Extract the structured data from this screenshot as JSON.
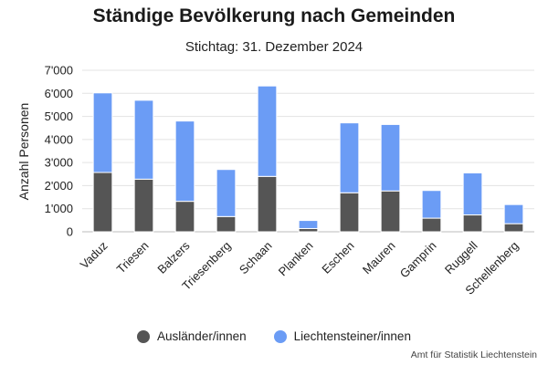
{
  "chart_data": {
    "type": "bar",
    "stacked": true,
    "title": "Ständige Bevölkerung nach Gemeinden",
    "subtitle": "Stichtag: 31. Dezember 2024",
    "ylabel": "Anzahl Personen",
    "xlabel": "",
    "ylim": [
      0,
      7000
    ],
    "yticks": [
      0,
      1000,
      2000,
      3000,
      4000,
      5000,
      6000,
      7000
    ],
    "ytick_labels": [
      "0",
      "1'000",
      "2'000",
      "3'000",
      "4'000",
      "5'000",
      "6'000",
      "7'000"
    ],
    "grid": true,
    "legend_position": "bottom",
    "categories": [
      "Vaduz",
      "Triesen",
      "Balzers",
      "Triesenberg",
      "Schaan",
      "Planken",
      "Eschen",
      "Mauren",
      "Gamprin",
      "Ruggell",
      "Schellenberg"
    ],
    "series": [
      {
        "name": "Ausländer/innen",
        "color": "#555555",
        "values": [
          2570,
          2280,
          1320,
          660,
          2400,
          140,
          1690,
          1770,
          590,
          730,
          350
        ]
      },
      {
        "name": "Liechtensteiner/innen",
        "color": "#6b9cf5",
        "values": [
          3450,
          3420,
          3480,
          2040,
          3920,
          350,
          3030,
          2880,
          1200,
          1820,
          830
        ]
      }
    ],
    "credits": "Amt für Statistik Liechtenstein"
  }
}
